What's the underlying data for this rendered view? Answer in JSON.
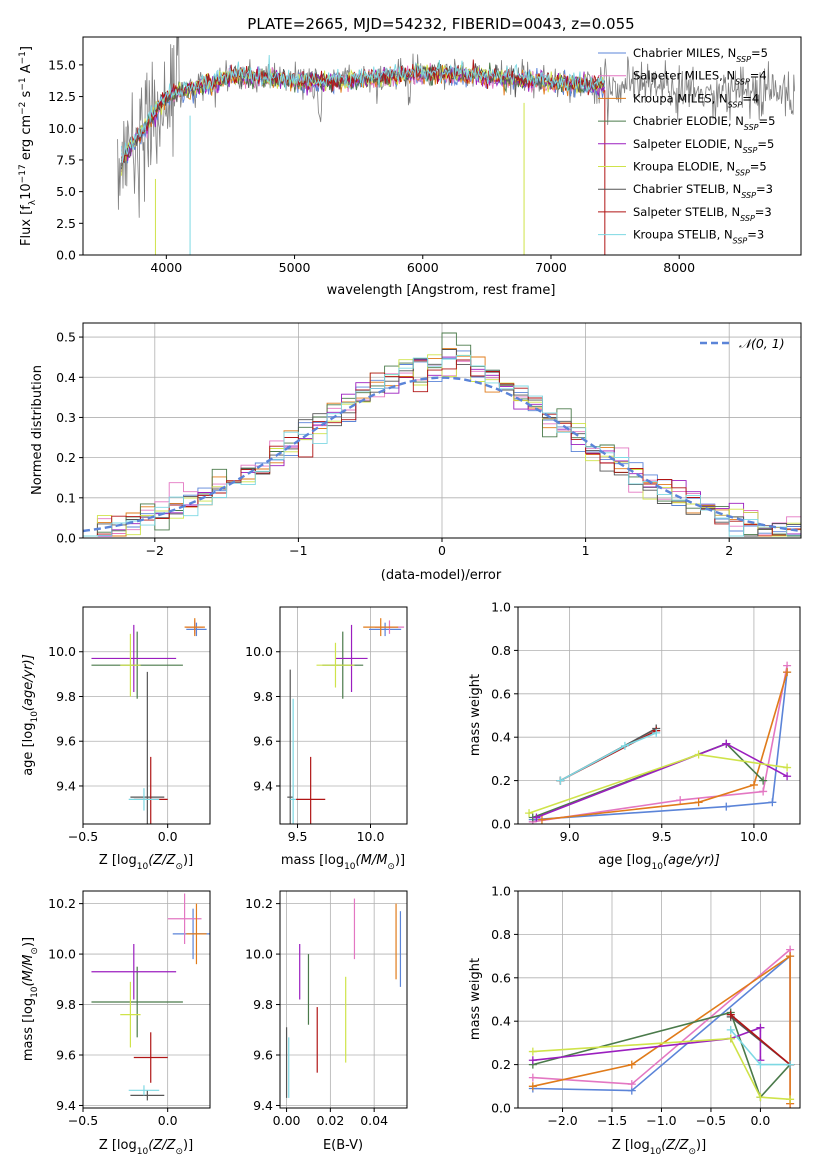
{
  "title": "PLATE=2665, MJD=54232, FIBERID=0043, z=0.055",
  "colors": {
    "Chabrier MILES": "#5b84d8",
    "Salpeter MILES": "#e377c2",
    "Kroupa MILES": "#e07b1a",
    "Chabrier ELODIE": "#4a7a4a",
    "Salpeter ELODIE": "#9b1fbf",
    "Kroupa ELODIE": "#cfe34a",
    "Chabrier STELIB": "#555555",
    "Salpeter STELIB": "#b01515",
    "Kroupa STELIB": "#7dd8e3"
  },
  "chart_data": [
    {
      "id": "spectrum",
      "type": "line",
      "xlabel": "wavelength [Angstrom, rest frame]",
      "ylabel_base": "Flux [f",
      "ylabel_lambda": "λ",
      "ylabel_mid": "10",
      "ylabel_exp1": "−17",
      "ylabel_rest": " erg cm",
      "ylabel_exp2": "−2",
      "ylabel_s": " s",
      "ylabel_exp3": "−1",
      "ylabel_A": " A",
      "ylabel_exp4": "−1",
      "ylabel_end": "]",
      "xlim": [
        3350,
        8950
      ],
      "ylim": [
        0,
        17.2
      ],
      "xticks": [
        4000,
        5000,
        6000,
        7000,
        8000
      ],
      "yticks": [
        0.0,
        2.5,
        5.0,
        7.5,
        10.0,
        12.5,
        15.0
      ],
      "legend_position": "top-right",
      "data_range": [
        3620,
        8900
      ],
      "models_range": [
        3650,
        7420
      ],
      "legend": [
        {
          "model": "Chabrier MILES",
          "n": "5"
        },
        {
          "model": "Salpeter MILES",
          "n": "4"
        },
        {
          "model": "Kroupa MILES",
          "n": "4"
        },
        {
          "model": "Chabrier ELODIE",
          "n": "5"
        },
        {
          "model": "Salpeter ELODIE",
          "n": "5"
        },
        {
          "model": "Kroupa ELODIE",
          "n": "5"
        },
        {
          "model": "Chabrier STELIB",
          "n": "3"
        },
        {
          "model": "Salpeter STELIB",
          "n": "3"
        },
        {
          "model": "Kroupa STELIB",
          "n": "3"
        }
      ],
      "legend_nssp_prefix": "N",
      "legend_nssp_sub": "SSP"
    },
    {
      "id": "residuals",
      "type": "line",
      "xlabel": "(data-model)/error",
      "ylabel": "Normed distribution",
      "xlim": [
        -2.5,
        2.5
      ],
      "ylim": [
        0,
        0.535
      ],
      "xticks": [
        -2,
        -1,
        0,
        1,
        2
      ],
      "yticks": [
        0.0,
        0.1,
        0.2,
        0.3,
        0.4,
        0.5
      ],
      "grid": true,
      "gaussian_label": "𝒩(0, 1)",
      "gaussian_color": "#5b84d8",
      "bin_width": 0.1,
      "legend_position": "top-right"
    },
    {
      "id": "z_age",
      "type": "scatter",
      "xlabel": "Z [log",
      "xlabel_sub": "10",
      "xlabel_tail": "(Z/Z",
      "xlabel_sun": "⊙",
      "xlabel_end": ")]",
      "ylabel": "age  [log",
      "ylabel_sub": "10",
      "ylabel_tail": "(age/yr)]",
      "xlim": [
        -0.5,
        0.25
      ],
      "ylim": [
        9.23,
        10.2
      ],
      "xticks": [
        -0.5,
        0.0
      ],
      "yticks": [
        9.4,
        9.6,
        9.8,
        10.0
      ],
      "grid": true,
      "points": [
        {
          "model": "Chabrier MILES",
          "x": 0.17,
          "y": 10.1,
          "xerr": 0.06,
          "yerr": 0.03
        },
        {
          "model": "Salpeter MILES",
          "x": 0.16,
          "y": 10.11,
          "xerr": 0.05,
          "yerr": 0.03
        },
        {
          "model": "Kroupa MILES",
          "x": 0.16,
          "y": 10.11,
          "xerr": 0.06,
          "yerr": 0.04
        },
        {
          "model": "Chabrier ELODIE",
          "x": -0.18,
          "y": 9.94,
          "xerr": 0.27,
          "yerr": 0.15
        },
        {
          "model": "Salpeter ELODIE",
          "x": -0.2,
          "y": 9.97,
          "xerr": 0.25,
          "yerr": 0.15
        },
        {
          "model": "Kroupa ELODIE",
          "x": -0.22,
          "y": 9.94,
          "xerr": 0.06,
          "yerr": 0.14
        },
        {
          "model": "Chabrier STELIB",
          "x": -0.12,
          "y": 9.35,
          "xerr": 0.1,
          "yerr": 0.56
        },
        {
          "model": "Salpeter STELIB",
          "x": -0.1,
          "y": 9.34,
          "xerr": 0.1,
          "yerr": 0.19
        },
        {
          "model": "Kroupa STELIB",
          "x": -0.14,
          "y": 9.34,
          "xerr": 0.09,
          "yerr": 0.05
        }
      ]
    },
    {
      "id": "mass_age",
      "type": "scatter",
      "xlabel": "mass [log",
      "xlabel_sub": "10",
      "xlabel_tail": "(M/M",
      "xlabel_sun": "⊙",
      "xlabel_end": ")]",
      "xlim": [
        9.38,
        10.25
      ],
      "ylim": [
        9.23,
        10.2
      ],
      "xticks": [
        9.5,
        10.0
      ],
      "yticks": [
        9.4,
        9.6,
        9.8,
        10.0
      ],
      "grid": true,
      "points": [
        {
          "model": "Chabrier MILES",
          "x": 10.1,
          "y": 10.1,
          "xerr": 0.11,
          "yerr": 0.03
        },
        {
          "model": "Salpeter MILES",
          "x": 10.13,
          "y": 10.11,
          "xerr": 0.1,
          "yerr": 0.03
        },
        {
          "model": "Kroupa MILES",
          "x": 10.07,
          "y": 10.11,
          "xerr": 0.12,
          "yerr": 0.04
        },
        {
          "model": "Chabrier ELODIE",
          "x": 9.81,
          "y": 9.94,
          "xerr": 0.14,
          "yerr": 0.15
        },
        {
          "model": "Salpeter ELODIE",
          "x": 9.87,
          "y": 9.97,
          "xerr": 0.11,
          "yerr": 0.15
        },
        {
          "model": "Kroupa ELODIE",
          "x": 9.76,
          "y": 9.94,
          "xerr": 0.13,
          "yerr": 0.1
        },
        {
          "model": "Chabrier STELIB",
          "x": 9.45,
          "y": 9.35,
          "xerr": 0.02,
          "yerr": 0.57
        },
        {
          "model": "Salpeter STELIB",
          "x": 9.59,
          "y": 9.34,
          "xerr": 0.1,
          "yerr": 0.19
        },
        {
          "model": "Kroupa STELIB",
          "x": 9.47,
          "y": 9.34,
          "xerr": 0.02,
          "yerr": 0.45
        }
      ]
    },
    {
      "id": "age_weight",
      "type": "line",
      "xlabel": "age  [log",
      "xlabel_sub": "10",
      "xlabel_tail": "(age/yr)]",
      "ylabel": "mass weight",
      "xlim": [
        8.72,
        10.25
      ],
      "ylim": [
        0,
        1
      ],
      "xticks": [
        9.0,
        9.5,
        10.0
      ],
      "yticks": [
        0.0,
        0.2,
        0.4,
        0.6,
        0.8,
        1.0
      ],
      "grid": true,
      "series": [
        {
          "model": "Chabrier MILES",
          "x": [
            8.8,
            9.85,
            10.1,
            10.18
          ],
          "y": [
            0.02,
            0.08,
            0.1,
            0.7
          ]
        },
        {
          "model": "Salpeter MILES",
          "x": [
            8.8,
            9.6,
            10.05,
            10.18
          ],
          "y": [
            0.01,
            0.11,
            0.15,
            0.73
          ]
        },
        {
          "model": "Kroupa MILES",
          "x": [
            8.85,
            9.7,
            10.0,
            10.18
          ],
          "y": [
            0.02,
            0.1,
            0.18,
            0.7
          ]
        },
        {
          "model": "Chabrier ELODIE",
          "x": [
            8.8,
            9.85,
            10.05
          ],
          "y": [
            0.03,
            0.37,
            0.2
          ]
        },
        {
          "model": "Salpeter ELODIE",
          "x": [
            8.82,
            9.85,
            10.18
          ],
          "y": [
            0.03,
            0.37,
            0.22
          ]
        },
        {
          "model": "Kroupa ELODIE",
          "x": [
            8.78,
            9.7,
            10.18
          ],
          "y": [
            0.05,
            0.32,
            0.26
          ]
        },
        {
          "model": "Chabrier STELIB",
          "x": [
            8.95,
            9.47
          ],
          "y": [
            0.2,
            0.44
          ]
        },
        {
          "model": "Salpeter STELIB",
          "x": [
            8.95,
            9.47
          ],
          "y": [
            0.2,
            0.43
          ]
        },
        {
          "model": "Kroupa STELIB",
          "x": [
            8.95,
            9.3,
            9.47
          ],
          "y": [
            0.2,
            0.36,
            0.42
          ]
        }
      ]
    },
    {
      "id": "z_mass",
      "type": "scatter",
      "xlabel": "Z [log",
      "xlabel_sub": "10",
      "xlabel_tail": "(Z/Z",
      "xlabel_sun": "⊙",
      "xlabel_end": ")]",
      "ylabel": "mass [log",
      "ylabel_sub": "10",
      "ylabel_tail": "(M/M",
      "ylabel_sun": "⊙",
      "ylabel_end": ")]",
      "xlim": [
        -0.5,
        0.25
      ],
      "ylim": [
        9.39,
        10.25
      ],
      "xticks": [
        -0.5,
        0.0
      ],
      "yticks": [
        9.4,
        9.6,
        9.8,
        10.0,
        10.2
      ],
      "grid": true,
      "points": [
        {
          "model": "Chabrier MILES",
          "x": 0.15,
          "y": 10.08,
          "xerr": 0.12,
          "yerr": 0.1
        },
        {
          "model": "Salpeter MILES",
          "x": 0.1,
          "y": 10.14,
          "xerr": 0.1,
          "yerr": 0.1
        },
        {
          "model": "Kroupa MILES",
          "x": 0.17,
          "y": 10.08,
          "xerr": 0.06,
          "yerr": 0.12
        },
        {
          "model": "Chabrier ELODIE",
          "x": -0.18,
          "y": 9.81,
          "xerr": 0.27,
          "yerr": 0.14
        },
        {
          "model": "Salpeter ELODIE",
          "x": -0.2,
          "y": 9.93,
          "xerr": 0.25,
          "yerr": 0.11
        },
        {
          "model": "Kroupa ELODIE",
          "x": -0.22,
          "y": 9.76,
          "xerr": 0.06,
          "yerr": 0.13
        },
        {
          "model": "Chabrier STELIB",
          "x": -0.12,
          "y": 9.44,
          "xerr": 0.1,
          "yerr": 0.02
        },
        {
          "model": "Salpeter STELIB",
          "x": -0.1,
          "y": 9.59,
          "xerr": 0.1,
          "yerr": 0.1
        },
        {
          "model": "Kroupa STELIB",
          "x": -0.14,
          "y": 9.46,
          "xerr": 0.09,
          "yerr": 0.02
        }
      ]
    },
    {
      "id": "ebv_mass",
      "type": "scatter",
      "xlabel": "E(B-V)",
      "xlim": [
        -0.003,
        0.055
      ],
      "ylim": [
        9.39,
        10.25
      ],
      "xticks": [
        0.0,
        0.02,
        0.04
      ],
      "yticks": [
        9.4,
        9.6,
        9.8,
        10.0,
        10.2
      ],
      "grid": true,
      "points": [
        {
          "model": "Chabrier MILES",
          "x": 0.052,
          "y": 10.02,
          "yerr": 0.15
        },
        {
          "model": "Salpeter MILES",
          "x": 0.031,
          "y": 10.1,
          "yerr": 0.12
        },
        {
          "model": "Kroupa MILES",
          "x": 0.05,
          "y": 10.05,
          "yerr": 0.15
        },
        {
          "model": "Chabrier ELODIE",
          "x": 0.01,
          "y": 9.86,
          "yerr": 0.14
        },
        {
          "model": "Salpeter ELODIE",
          "x": 0.006,
          "y": 9.93,
          "yerr": 0.11
        },
        {
          "model": "Kroupa ELODIE",
          "x": 0.027,
          "y": 9.74,
          "yerr": 0.17
        },
        {
          "model": "Chabrier STELIB",
          "x": 0.0,
          "y": 9.57,
          "yerr": 0.14
        },
        {
          "model": "Salpeter STELIB",
          "x": 0.014,
          "y": 9.66,
          "yerr": 0.13
        },
        {
          "model": "Kroupa STELIB",
          "x": 0.001,
          "y": 9.55,
          "yerr": 0.12
        }
      ]
    },
    {
      "id": "z_weight",
      "type": "line",
      "xlabel": "Z [log",
      "xlabel_sub": "10",
      "xlabel_tail": "(Z/Z",
      "xlabel_sun": "⊙",
      "xlabel_end": ")]",
      "ylabel": "mass weight",
      "xlim": [
        -2.45,
        0.4
      ],
      "ylim": [
        0,
        1
      ],
      "xticks": [
        -2.0,
        -1.5,
        -1.0,
        -0.5,
        0.0
      ],
      "yticks": [
        0.0,
        0.2,
        0.4,
        0.6,
        0.8,
        1.0
      ],
      "grid": true,
      "series": [
        {
          "model": "Chabrier MILES",
          "x": [
            -2.3,
            -1.3,
            0.3,
            0.3
          ],
          "y": [
            0.09,
            0.08,
            0.7,
            0.2
          ]
        },
        {
          "model": "Salpeter MILES",
          "x": [
            -2.3,
            -1.3,
            0.3,
            0.3
          ],
          "y": [
            0.14,
            0.11,
            0.73,
            0.02
          ]
        },
        {
          "model": "Kroupa MILES",
          "x": [
            -2.3,
            -1.3,
            0.3,
            0.3
          ],
          "y": [
            0.1,
            0.2,
            0.7,
            0.02
          ]
        },
        {
          "model": "Chabrier ELODIE",
          "x": [
            -2.3,
            -0.3,
            0.0,
            0.3
          ],
          "y": [
            0.2,
            0.44,
            0.05,
            0.2
          ]
        },
        {
          "model": "Salpeter ELODIE",
          "x": [
            -2.3,
            -0.3,
            0.0,
            0.0
          ],
          "y": [
            0.22,
            0.32,
            0.37,
            0.22
          ]
        },
        {
          "model": "Kroupa ELODIE",
          "x": [
            -2.3,
            -0.3,
            0.0,
            0.3
          ],
          "y": [
            0.26,
            0.32,
            0.05,
            0.04
          ]
        },
        {
          "model": "Chabrier STELIB",
          "x": [
            -0.3,
            0.3
          ],
          "y": [
            0.42,
            0.2
          ]
        },
        {
          "model": "Salpeter STELIB",
          "x": [
            -0.3,
            0.3
          ],
          "y": [
            0.43,
            0.2
          ]
        },
        {
          "model": "Kroupa STELIB",
          "x": [
            -0.3,
            0.0,
            0.3
          ],
          "y": [
            0.36,
            0.2,
            0.2
          ]
        }
      ]
    }
  ]
}
